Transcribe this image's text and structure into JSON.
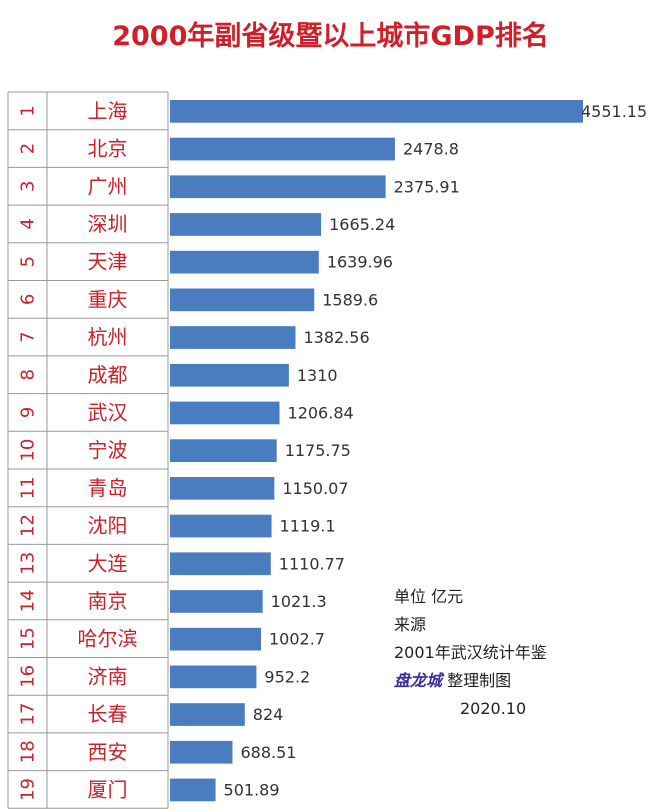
{
  "title": "2000年副省级暨以上城市GDP排名",
  "notes": {
    "unit": "单位  亿元",
    "source_label": "来源",
    "source": "2001年武汉统计年鉴",
    "maker": "盘龙城",
    "maker_suffix": " 整理制图",
    "date": "2020.10"
  },
  "colors": {
    "bar": "#4a7cc0",
    "rank_text": "#c8222a",
    "city_text": "#c8222a",
    "value_text": "#333333",
    "grid": "#999999"
  },
  "chart_data": {
    "type": "bar",
    "orientation": "horizontal",
    "title": "2000年副省级暨以上城市GDP排名",
    "ranks": [
      "1",
      "2",
      "3",
      "4",
      "5",
      "6",
      "7",
      "8",
      "9",
      "10",
      "11",
      "12",
      "13",
      "14",
      "15",
      "16",
      "17",
      "18",
      "19"
    ],
    "categories": [
      "上海",
      "北京",
      "广州",
      "深圳",
      "天津",
      "重庆",
      "杭州",
      "成都",
      "武汉",
      "宁波",
      "青岛",
      "沈阳",
      "大连",
      "南京",
      "哈尔滨",
      "济南",
      "长春",
      "西安",
      "厦门"
    ],
    "values": [
      4551.15,
      2478.8,
      2375.91,
      1665.24,
      1639.96,
      1589.6,
      1382.56,
      1310,
      1206.84,
      1175.75,
      1150.07,
      1119.1,
      1110.77,
      1021.3,
      1002.7,
      952.2,
      824,
      688.51,
      501.89
    ],
    "value_labels": [
      "4551.15",
      "2478.8",
      "2375.91",
      "1665.24",
      "1639.96",
      "1589.6",
      "1382.56",
      "1310",
      "1206.84",
      "1175.75",
      "1150.07",
      "1119.1",
      "1110.77",
      "1021.3",
      "1002.7",
      "952.2",
      "824",
      "688.51",
      "501.89"
    ],
    "xlim": [
      0,
      4900
    ],
    "grid": false,
    "legend": "none"
  }
}
